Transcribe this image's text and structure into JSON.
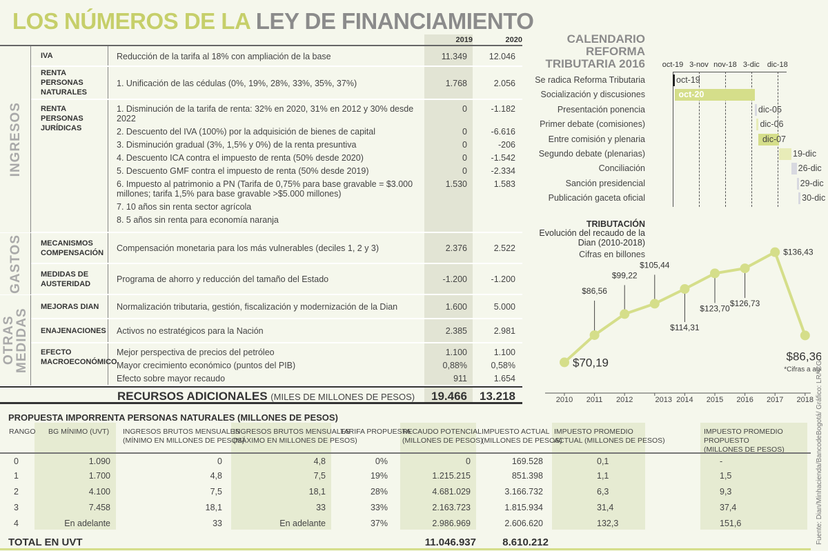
{
  "title": {
    "part1": "LOS NÚMEROS DE LA",
    "part2": "LEY DE FINANCIAMIENTO"
  },
  "colors": {
    "accent_green": "#c6cf6a",
    "gray_title": "#8b8b8b",
    "bar_gray": "#d8d9e0",
    "bar_light": "#e8ecb8"
  },
  "top_table": {
    "years": [
      "2019",
      "2020"
    ],
    "sections": [
      {
        "label": "INGRESOS",
        "groups": [
          {
            "name": "IVA",
            "items": [
              {
                "text": "Reducción de la tarifa al 18% con ampliación de la base",
                "v2019": "11.349",
                "v2020": "12.046"
              }
            ]
          },
          {
            "name": "RENTA PERSONAS NATURALES",
            "items": [
              {
                "text": "1. Unificación de las cédulas (0%, 19%, 28%, 33%, 35%, 37%)",
                "v2019": "1.768",
                "v2020": "2.056"
              }
            ]
          },
          {
            "name": "RENTA PERSONAS JURÍDICAS",
            "items": [
              {
                "text": "1. Disminución de la tarifa de renta: 32% en 2020, 31% en 2012 y 30% desde 2022",
                "v2019": "0",
                "v2020": "-1.182"
              },
              {
                "text": "2. Descuento del IVA (100%) por la adquisición de bienes de capital",
                "v2019": "0",
                "v2020": "-6.616"
              },
              {
                "text": "3. Disminución gradual (3%, 1,5% y 0%) de la renta presuntiva",
                "v2019": "0",
                "v2020": "-206"
              },
              {
                "text": "4. Descuento ICA contra el impuesto de renta (50% desde 2020)",
                "v2019": "0",
                "v2020": "-1.542"
              },
              {
                "text": "5. Descuento GMF contra el impuesto de renta (50% desde 2019)",
                "v2019": "0",
                "v2020": "-2.334"
              },
              {
                "text": "6. Impuesto al patrimonio a PN (Tarifa de 0,75% para base gravable = $3.000 millones; tarifa 1,5% para base gravable >$5.000 millones)",
                "v2019": "1.530",
                "v2020": "1.583"
              },
              {
                "text": "7. 10 años sin renta sector agrícola",
                "v2019": "",
                "v2020": ""
              },
              {
                "text": "8. 5 años sin renta para economía naranja",
                "v2019": "",
                "v2020": ""
              }
            ]
          }
        ]
      },
      {
        "label": "GASTOS",
        "groups": [
          {
            "name": "MECANISMOS COMPENSACIÓN",
            "items": [
              {
                "text": "Compensación monetaria para los más vulnerables (deciles 1, 2 y 3)",
                "v2019": "2.376",
                "v2020": "2.522"
              }
            ]
          },
          {
            "name": "MEDIDAS DE AUSTERIDAD",
            "items": [
              {
                "text": "Programa de ahorro y reducción del tamaño del Estado",
                "v2019": "-1.200",
                "v2020": "-1.200"
              }
            ]
          }
        ]
      },
      {
        "label": "OTRAS MEDIDAS",
        "groups": [
          {
            "name": "MEJORAS DIAN",
            "items": [
              {
                "text": "Normalización tributaria, gestión, fiscalización y modernización de la Dian",
                "v2019": "1.600",
                "v2020": "5.000"
              }
            ]
          },
          {
            "name": "ENAJENACIONES",
            "items": [
              {
                "text": "Activos no estratégicos para la Nación",
                "v2019": "2.385",
                "v2020": "2.981"
              }
            ]
          },
          {
            "name": "EFECTO MACROECONÓMICO",
            "items": [
              {
                "text": "Mejor perspectiva de precios del petróleo",
                "v2019": "1.100",
                "v2020": "1.100"
              },
              {
                "text": "Mayor crecimiento económico (puntos del PIB)",
                "v2019": "0,88%",
                "v2020": "0,58%"
              },
              {
                "text": "Efecto sobre mayor recaudo",
                "v2019": "911",
                "v2020": "1.654"
              }
            ]
          }
        ]
      }
    ],
    "total": {
      "label": "RECURSOS ADICIONALES",
      "unit": "(MILES DE MILLONES DE PESOS)",
      "v2019": "19.466",
      "v2020": "13.218"
    }
  },
  "chart_data": [
    {
      "type": "gantt",
      "title": "CALENDARIO REFORMA TRIBUTARIA 2016",
      "ticks": [
        "oct-19",
        "3-nov",
        "nov-18",
        "3-dic",
        "dic-18"
      ],
      "tick_dates": [
        "2016-10-19",
        "2016-11-03",
        "2016-11-18",
        "2016-12-03",
        "2016-12-18"
      ],
      "tasks": [
        {
          "label": "Se radica Reforma Tributaria",
          "start": "2016-10-19",
          "end": "2016-10-19",
          "value_label": "oct-19",
          "color": "#222222"
        },
        {
          "label": "Socialización y discusiones",
          "start": "2016-10-20",
          "end": "2016-12-04",
          "value_label": "oct-20",
          "color": "#d5de8a"
        },
        {
          "label": "Presentación ponencia",
          "start": "2016-12-05",
          "end": "2016-12-05",
          "value_label": "dic-05",
          "color": "#d8d9e0"
        },
        {
          "label": "Primer debate (comisiones)",
          "start": "2016-12-06",
          "end": "2016-12-06",
          "value_label": "dic-06",
          "color": "#e8ecb8"
        },
        {
          "label": "Entre comisión y plenaria",
          "start": "2016-12-07",
          "end": "2016-12-18",
          "value_label": "dic-07",
          "color": "#d5de8a"
        },
        {
          "label": "Segundo debate (plenarias)",
          "start": "2016-12-19",
          "end": "2016-12-25",
          "value_label": "19-dic",
          "color": "#e8ecb8"
        },
        {
          "label": "Conciliación",
          "start": "2016-12-26",
          "end": "2016-12-28",
          "value_label": "26-dic",
          "color": "#d8d9e0"
        },
        {
          "label": "Sanción presidencial",
          "start": "2016-12-29",
          "end": "2016-12-29",
          "value_label": "29-dic",
          "color": "#d8d9e0"
        },
        {
          "label": "Publicación gaceta oficial",
          "start": "2016-12-30",
          "end": "2016-12-30",
          "value_label": "30-dic",
          "color": "#d8d9e0"
        }
      ]
    },
    {
      "type": "line",
      "title": "TRIBUTACIÓN",
      "subtitle": "Evolución del recaudo de la Dian (2010-2018)",
      "unit_note": "Cifras en billones",
      "categories": [
        "2010",
        "2011",
        "2012",
        "2013",
        "2014",
        "2015",
        "2016",
        "2017",
        "2018"
      ],
      "values": [
        70.19,
        86.56,
        99.22,
        105.44,
        114.31,
        123.7,
        126.73,
        136.43,
        86.36
      ],
      "labels": [
        "$70,19",
        "$86,56",
        "$99,22",
        "$105,44",
        "$114,31",
        "$123,70",
        "$126,73",
        "$136,43",
        "$86,36*"
      ],
      "footnote": "*Cifras a agosto",
      "color": "#d5de8a"
    }
  ],
  "bottom_table": {
    "title": "PROPUESTA IMPORRENTA PERSONAS NATURALES (MILLONES DE PESOS)",
    "headers": [
      "RANGO",
      "BG MÍNIMO (UVT)",
      "INGRESOS BRUTOS MENSUALES\n(MÍNIMO EN MILLONES DE PESOS)",
      "INGRESOS BRUTOS MENSUALES\n(MÁXIMO EN MILLONES DE PESOS)",
      "TARIFA PROPUESTA",
      "RECAUDO POTENCIAL\n(MILLONES DE PESOS)",
      "IMPUESTO ACTUAL\n(MILLONES DE PESOS)",
      "IMPUESTO PROMEDIO\nACTUAL (MILLONES DE PESOS)",
      "IMPUESTO PROMEDIO PROPUESTO\n(MILLONES DE PESOS)"
    ],
    "rows": [
      [
        "0",
        "1.090",
        "0",
        "4,8",
        "0%",
        "0",
        "169.528",
        "0,1",
        "-"
      ],
      [
        "1",
        "1.700",
        "4,8",
        "7,5",
        "19%",
        "1.215.215",
        "851.398",
        "1,1",
        "1,5"
      ],
      [
        "2",
        "4.100",
        "7,5",
        "18,1",
        "28%",
        "4.681.029",
        "3.166.732",
        "6,3",
        "9,3"
      ],
      [
        "3",
        "7.458",
        "18,1",
        "33",
        "33%",
        "2.163.723",
        "1.815.934",
        "31,4",
        "37,4"
      ],
      [
        "4",
        "En adelante",
        "33",
        "En adelante",
        "37%",
        "2.986.969",
        "2.606.620",
        "132,3",
        "151,6"
      ]
    ],
    "total": {
      "label": "TOTAL EN UVT",
      "recaudo": "11.046.937",
      "impuesto": "8.610.212"
    }
  },
  "source": "Fuente: Dian/Minhacienda/BancodeBogotá/ Gráfico: LR/ CG"
}
